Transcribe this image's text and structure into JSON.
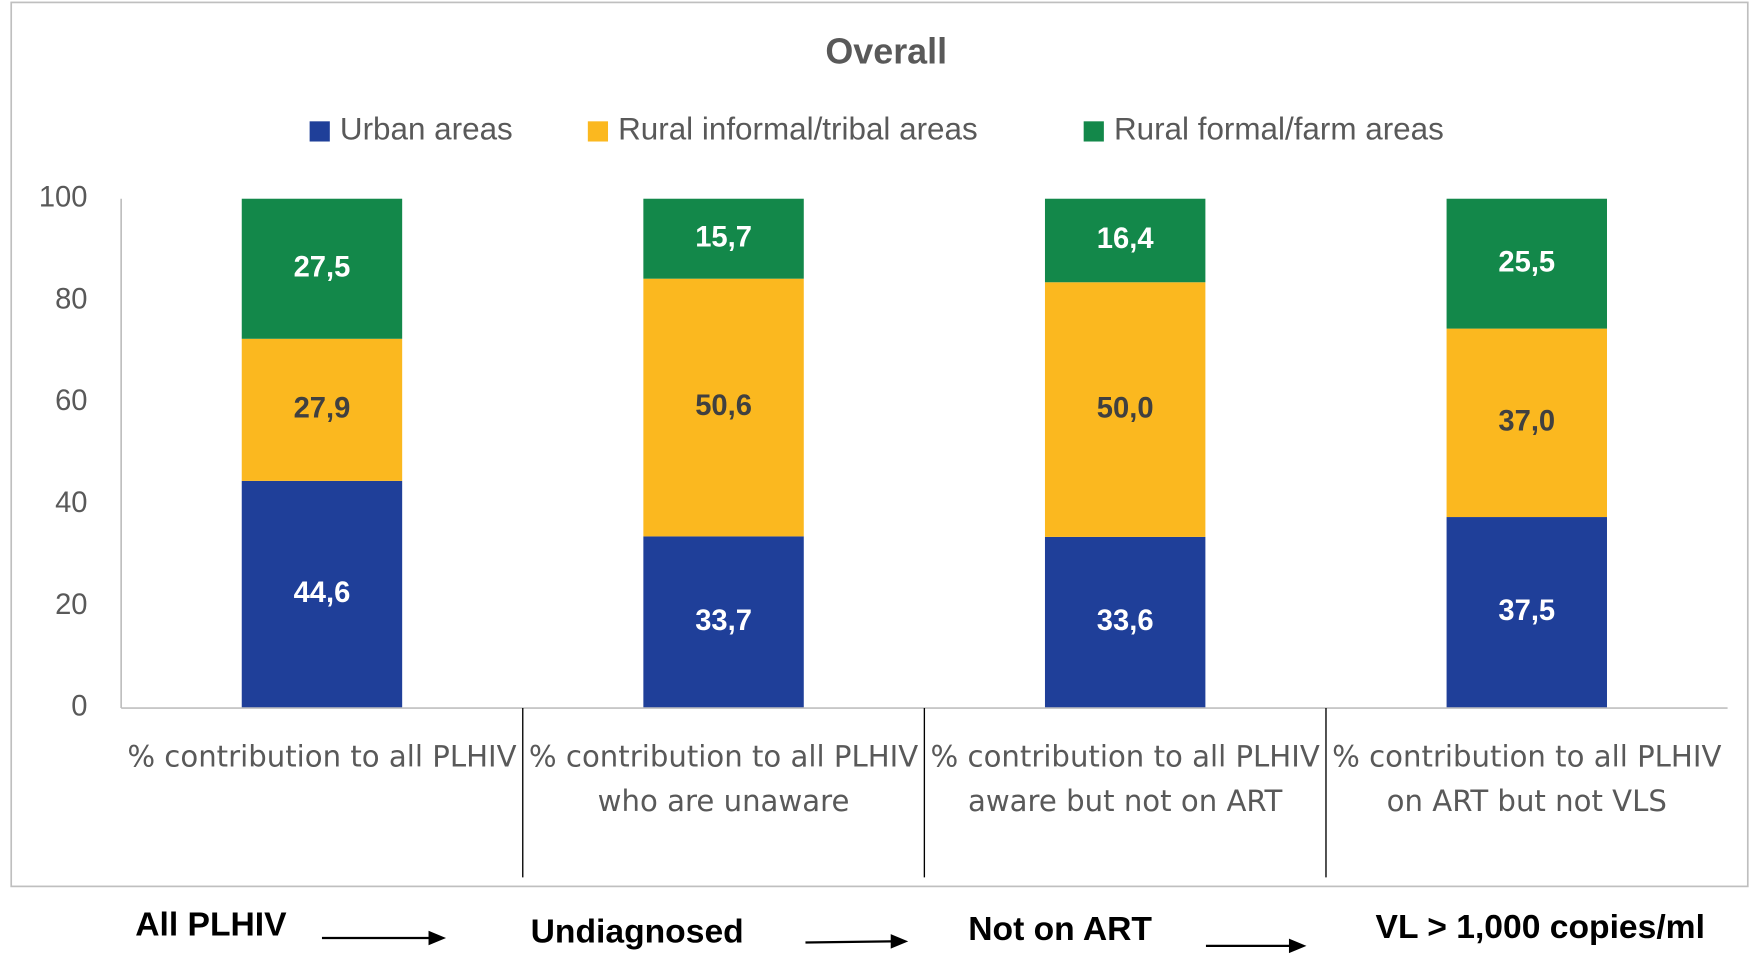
{
  "chart_data": {
    "type": "stacked_bar",
    "title": "Overall",
    "categories": [
      "% contribution to all PLHIV",
      "% contribution to all PLHIV who are unaware",
      "% contribution to all PLHIV aware but not on ART",
      "% contribution to all PLHIV on ART but not VLS"
    ],
    "series": [
      {
        "name": "Urban areas",
        "color": "#1f3f99",
        "label_color": "#ffffff",
        "values": [
          44.6,
          33.7,
          33.6,
          37.5
        ],
        "value_labels": [
          "44,6",
          "33,7",
          "33,6",
          "37,5"
        ]
      },
      {
        "name": "Rural informal/tribal areas",
        "color": "#fbb81f",
        "label_color": "#404040",
        "values": [
          27.9,
          50.6,
          50.0,
          37.0
        ],
        "value_labels": [
          "27,9",
          "50,6",
          "50,0",
          "37,0"
        ]
      },
      {
        "name": "Rural formal/farm areas",
        "color": "#13884a",
        "label_color": "#ffffff",
        "values": [
          27.5,
          15.7,
          16.4,
          25.5
        ],
        "value_labels": [
          "27,5",
          "15,7",
          "16,4",
          "25,5"
        ]
      }
    ],
    "ylim": [
      0,
      100
    ],
    "yticks": [
      0,
      20,
      40,
      60,
      80,
      100
    ],
    "grid": false,
    "legend": "top",
    "annotations": [
      "All PLHIV",
      "Undiagnosed",
      "Not on ART",
      "VL > 1,000 copies/ml"
    ]
  }
}
